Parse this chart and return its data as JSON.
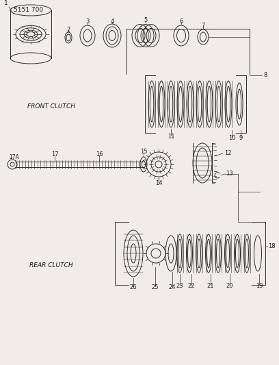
{
  "title_code": "5151 700",
  "bg_color": "#f0ede8",
  "line_color": "#2a2a2a",
  "text_color": "#1a1a1a",
  "front_clutch_label": "FRONT CLUTCH",
  "rear_clutch_label": "REAR CLUTCH",
  "fig_w": 4.08,
  "fig_h": 5.33,
  "dpi": 100
}
